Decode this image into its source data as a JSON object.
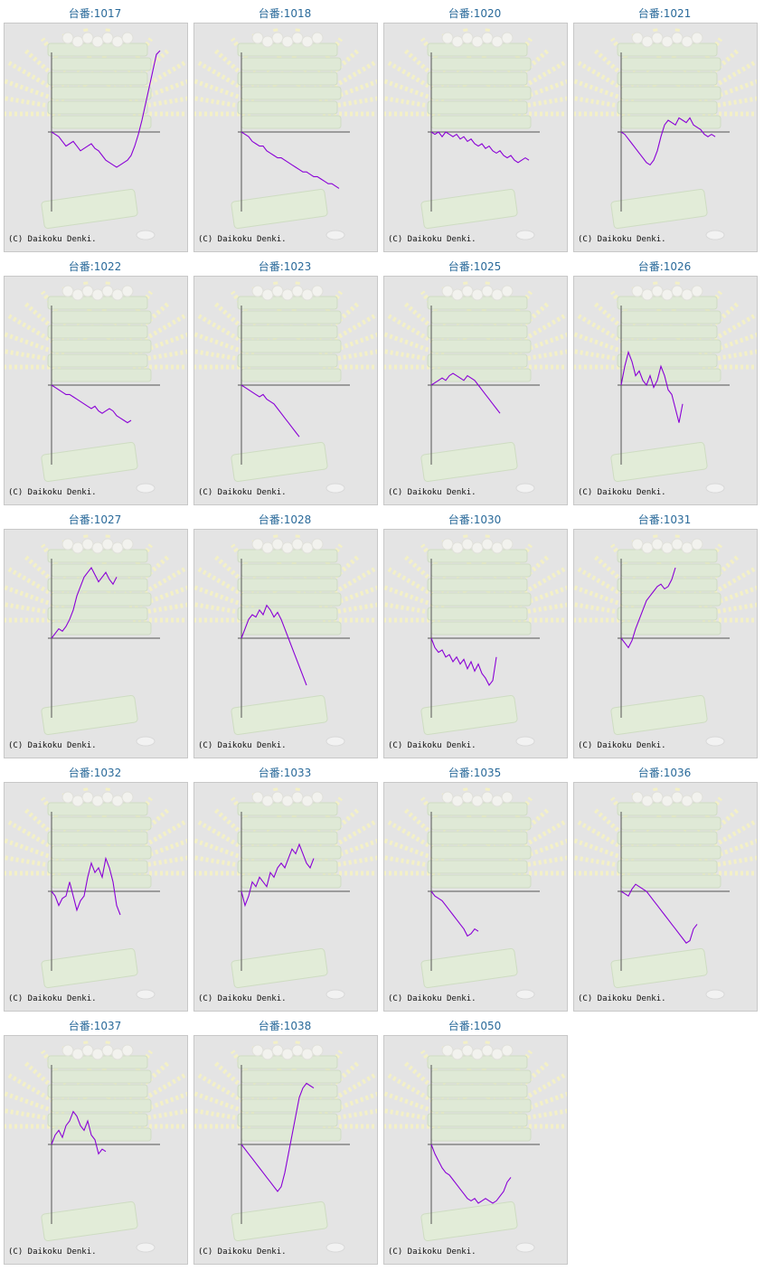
{
  "copyright": "(C) Daikoku Denki.",
  "line_color": "#8a00d6",
  "title_color": "#2a6a9a",
  "chart_data": [
    {
      "type": "line",
      "title": "台番:1017",
      "values": [
        0,
        -1,
        -2,
        -4,
        -6,
        -5,
        -4,
        -6,
        -8,
        -7,
        -6,
        -5,
        -7,
        -8,
        -10,
        -12,
        -13,
        -14,
        -15,
        -14,
        -13,
        -12,
        -10,
        -6,
        -1,
        5,
        12,
        19,
        26,
        33,
        38
      ]
    },
    {
      "type": "line",
      "title": "台番:1018",
      "values": [
        0,
        -1,
        -2,
        -4,
        -5,
        -6,
        -6,
        -8,
        -9,
        -10,
        -11,
        -11,
        -12,
        -13,
        -14,
        -15,
        -16,
        -17,
        -17,
        -18,
        -19,
        -19,
        -20,
        -21,
        -22,
        -22,
        -23,
        -24
      ]
    },
    {
      "type": "line",
      "title": "台番:1020",
      "values": [
        0,
        -1,
        0,
        -2,
        0,
        -1,
        -2,
        -1,
        -3,
        -2,
        -4,
        -3,
        -5,
        -6,
        -5,
        -7,
        -6,
        -8,
        -9,
        -8,
        -10,
        -11,
        -10,
        -12,
        -13,
        -12,
        -11,
        -12
      ]
    },
    {
      "type": "line",
      "title": "台番:1021",
      "values": [
        0,
        -1,
        -3,
        -5,
        -7,
        -9,
        -11,
        -13,
        -14,
        -12,
        -8,
        -2,
        3,
        5,
        4,
        3,
        6,
        5,
        4,
        6,
        3,
        2,
        1,
        -1,
        -2,
        -1,
        -2
      ]
    },
    {
      "type": "line",
      "title": "台番:1022",
      "values": [
        0,
        -1,
        -2,
        -3,
        -4,
        -4,
        -5,
        -6,
        -7,
        -8,
        -9,
        -10,
        -9,
        -11,
        -12,
        -11,
        -10,
        -11,
        -13,
        -14,
        -15,
        -16,
        -15
      ]
    },
    {
      "type": "line",
      "title": "台番:1023",
      "values": [
        0,
        -1,
        -2,
        -3,
        -4,
        -5,
        -4,
        -6,
        -7,
        -8,
        -10,
        -12,
        -14,
        -16,
        -18,
        -20,
        -22
      ]
    },
    {
      "type": "line",
      "title": "台番:1025",
      "values": [
        0,
        1,
        2,
        3,
        2,
        4,
        5,
        4,
        3,
        2,
        4,
        3,
        2,
        0,
        -2,
        -4,
        -6,
        -8,
        -10,
        -12
      ]
    },
    {
      "type": "line",
      "title": "台番:1026",
      "values": [
        0,
        8,
        14,
        10,
        4,
        6,
        2,
        0,
        4,
        -1,
        2,
        8,
        4,
        -2,
        -4,
        -10,
        -16,
        -8
      ]
    },
    {
      "type": "line",
      "title": "台番:1027",
      "values": [
        0,
        2,
        4,
        3,
        5,
        8,
        12,
        18,
        22,
        26,
        28,
        30,
        27,
        24,
        26,
        28,
        25,
        23,
        26
      ]
    },
    {
      "type": "line",
      "title": "台番:1028",
      "values": [
        0,
        4,
        8,
        10,
        9,
        12,
        10,
        14,
        12,
        9,
        11,
        8,
        4,
        0,
        -4,
        -8,
        -12,
        -16,
        -20
      ]
    },
    {
      "type": "line",
      "title": "台番:1030",
      "values": [
        0,
        -4,
        -6,
        -5,
        -8,
        -7,
        -10,
        -8,
        -11,
        -9,
        -13,
        -10,
        -14,
        -11,
        -15,
        -17,
        -20,
        -18,
        -8
      ]
    },
    {
      "type": "line",
      "title": "台番:1031",
      "values": [
        0,
        -2,
        -4,
        -1,
        4,
        8,
        12,
        16,
        18,
        20,
        22,
        23,
        21,
        22,
        25,
        30
      ]
    },
    {
      "type": "line",
      "title": "台番:1032",
      "values": [
        0,
        -2,
        -6,
        -3,
        -2,
        4,
        -2,
        -8,
        -4,
        -2,
        6,
        12,
        8,
        10,
        6,
        14,
        10,
        4,
        -6,
        -10
      ]
    },
    {
      "type": "line",
      "title": "台番:1033",
      "values": [
        0,
        -6,
        -2,
        4,
        2,
        6,
        4,
        2,
        8,
        6,
        10,
        12,
        10,
        14,
        18,
        16,
        20,
        16,
        12,
        10,
        14
      ]
    },
    {
      "type": "line",
      "title": "台番:1035",
      "values": [
        0,
        -2,
        -3,
        -4,
        -6,
        -8,
        -10,
        -12,
        -14,
        -16,
        -19,
        -18,
        -16,
        -17
      ]
    },
    {
      "type": "line",
      "title": "台番:1036",
      "values": [
        0,
        -1,
        -2,
        1,
        3,
        2,
        1,
        0,
        -2,
        -4,
        -6,
        -8,
        -10,
        -12,
        -14,
        -16,
        -18,
        -20,
        -22,
        -21,
        -16,
        -14
      ]
    },
    {
      "type": "line",
      "title": "台番:1037",
      "values": [
        0,
        4,
        6,
        3,
        8,
        10,
        14,
        12,
        8,
        6,
        10,
        4,
        2,
        -4,
        -2,
        -3
      ]
    },
    {
      "type": "line",
      "title": "台番:1038",
      "values": [
        0,
        -2,
        -4,
        -6,
        -8,
        -10,
        -12,
        -14,
        -16,
        -18,
        -20,
        -18,
        -12,
        -4,
        4,
        12,
        20,
        24,
        26,
        25,
        24
      ]
    },
    {
      "type": "line",
      "title": "台番:1050",
      "values": [
        0,
        -4,
        -7,
        -10,
        -12,
        -13,
        -15,
        -17,
        -19,
        -21,
        -23,
        -24,
        -23,
        -25,
        -24,
        -23,
        -24,
        -25,
        -24,
        -22,
        -20,
        -16,
        -14
      ]
    }
  ]
}
